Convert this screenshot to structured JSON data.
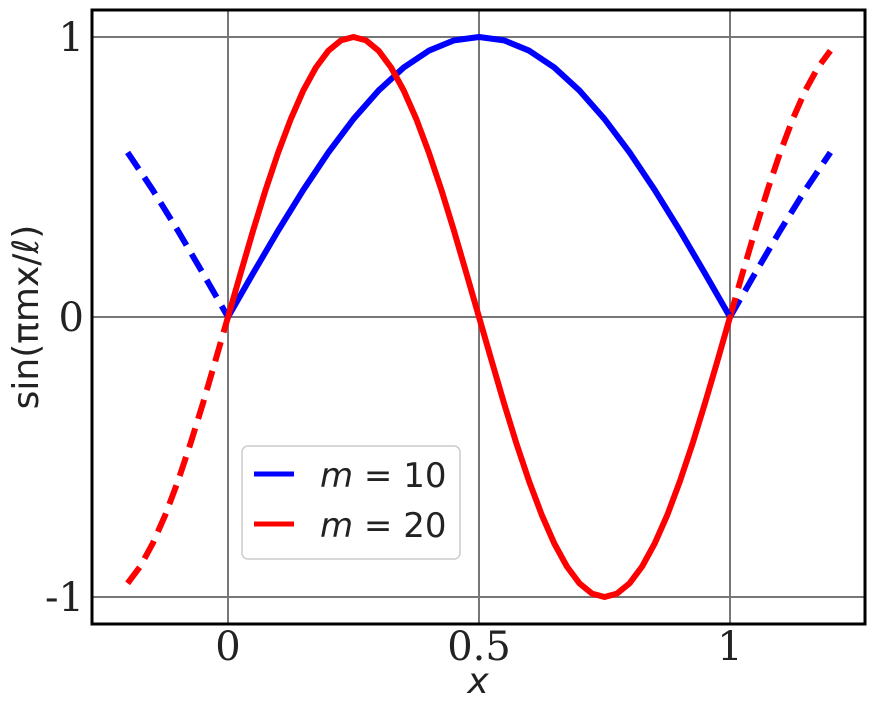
{
  "chart_data": {
    "type": "line",
    "xlabel": "x",
    "ylabel": "sin(πmx/ℓ)",
    "xlim": [
      -0.25,
      1.27
    ],
    "ylim": [
      -1.1,
      1.1
    ],
    "xticks": [
      {
        "value": 0,
        "label": "0"
      },
      {
        "value": 0.5,
        "label": "0.5"
      },
      {
        "value": 1,
        "label": "1"
      }
    ],
    "yticks": [
      {
        "value": -1,
        "label": "-1"
      },
      {
        "value": 0,
        "label": "0"
      },
      {
        "value": 1,
        "label": "1"
      }
    ],
    "grid": true,
    "legend_position": "lower-left",
    "series": [
      {
        "name": "m = 10",
        "legend_m": "m",
        "legend_eq": " = 10",
        "color": "#0000ff",
        "solid": {
          "x": [
            0,
            0.05,
            0.1,
            0.15,
            0.2,
            0.25,
            0.3,
            0.35,
            0.4,
            0.45,
            0.5,
            0.55,
            0.6,
            0.65,
            0.7,
            0.75,
            0.8,
            0.85,
            0.9,
            0.95,
            1.0
          ],
          "y": [
            0,
            0.156,
            0.309,
            0.454,
            0.588,
            0.707,
            0.809,
            0.891,
            0.951,
            0.988,
            1.0,
            0.988,
            0.951,
            0.891,
            0.809,
            0.707,
            0.588,
            0.454,
            0.309,
            0.156,
            0
          ]
        },
        "dashed_left": {
          "x": [
            -0.2,
            -0.15,
            -0.1,
            -0.05,
            0
          ],
          "y": [
            0.588,
            0.454,
            0.309,
            0.156,
            0
          ]
        },
        "dashed_right": {
          "x": [
            1.0,
            1.05,
            1.1,
            1.15,
            1.2
          ],
          "y": [
            0,
            0.156,
            0.309,
            0.454,
            0.588
          ]
        }
      },
      {
        "name": "m = 20",
        "legend_m": "m",
        "legend_eq": " = 20",
        "color": "#ff0000",
        "solid": {
          "x": [
            0,
            0.025,
            0.05,
            0.075,
            0.1,
            0.125,
            0.15,
            0.175,
            0.2,
            0.225,
            0.25,
            0.275,
            0.3,
            0.325,
            0.35,
            0.375,
            0.4,
            0.425,
            0.45,
            0.475,
            0.5,
            0.525,
            0.55,
            0.575,
            0.6,
            0.625,
            0.65,
            0.675,
            0.7,
            0.725,
            0.75,
            0.775,
            0.8,
            0.825,
            0.85,
            0.875,
            0.9,
            0.925,
            0.95,
            0.975,
            1.0
          ],
          "y": [
            0,
            0.156,
            0.309,
            0.454,
            0.588,
            0.707,
            0.809,
            0.891,
            0.951,
            0.988,
            1.0,
            0.988,
            0.951,
            0.891,
            0.809,
            0.707,
            0.588,
            0.454,
            0.309,
            0.156,
            0,
            -0.156,
            -0.309,
            -0.454,
            -0.588,
            -0.707,
            -0.809,
            -0.891,
            -0.951,
            -0.988,
            -1.0,
            -0.988,
            -0.951,
            -0.891,
            -0.809,
            -0.707,
            -0.588,
            -0.454,
            -0.309,
            -0.156,
            0
          ]
        },
        "dashed_left": {
          "x": [
            -0.2,
            -0.175,
            -0.15,
            -0.125,
            -0.1,
            -0.075,
            -0.05,
            -0.025,
            0
          ],
          "y": [
            -0.951,
            -0.891,
            -0.809,
            -0.707,
            -0.588,
            -0.454,
            -0.309,
            -0.156,
            0
          ]
        },
        "dashed_right": {
          "x": [
            1.0,
            1.025,
            1.05,
            1.075,
            1.1,
            1.125,
            1.15,
            1.175,
            1.2
          ],
          "y": [
            0,
            0.156,
            0.309,
            0.454,
            0.588,
            0.707,
            0.809,
            0.891,
            0.951
          ]
        }
      }
    ]
  }
}
